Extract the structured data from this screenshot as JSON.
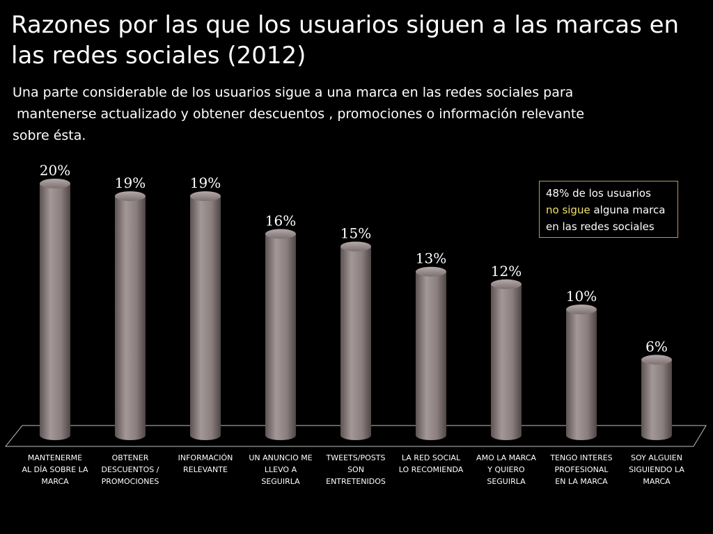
{
  "slide": {
    "title_lines": [
      "Razones por las que los usuarios siguen a las marcas en",
      "las redes sociales (2012)"
    ],
    "subtitle_lines": [
      "Una parte considerable de los usuarios sigue a una marca en las redes sociales para",
      " mantenerse actualizado y obtener descuentos , promociones o información relevante",
      "sobre ésta."
    ]
  },
  "note": {
    "line1": "48% de los usuarios",
    "highlight": "no sigue",
    "line2_rest": " alguna marca",
    "line3": "en las redes sociales",
    "highlight_color": "#f2e06a",
    "border_color": "#b89a62"
  },
  "chart_data": {
    "type": "bar",
    "title": "",
    "xlabel": "",
    "ylabel": "",
    "ylim": [
      0,
      20
    ],
    "grid": false,
    "bar_style": "3d-cylinder",
    "bar_color": "#8a7e7e",
    "categories": [
      [
        "MANTENERME",
        "AL DÍA SOBRE LA",
        "MARCA"
      ],
      [
        "OBTENER",
        "DESCUENTOS /",
        "PROMOCIONES"
      ],
      [
        "INFORMACIÓN",
        "RELEVANTE"
      ],
      [
        "UN ANUNCIO ME",
        "LLEVO A",
        "SEGUIRLA"
      ],
      [
        "TWEETS/POSTS",
        "SON",
        "ENTRETENIDOS"
      ],
      [
        "LA RED SOCIAL",
        "LO RECOMIENDA"
      ],
      [
        "AMO LA MARCA",
        "Y QUIERO",
        "SEGUIRLA"
      ],
      [
        "TENGO INTERES",
        "PROFESIONAL",
        "EN LA MARCA"
      ],
      [
        "SOY ALGUIEN",
        "SIGUIENDO LA",
        "MARCA"
      ]
    ],
    "values": [
      20,
      19,
      19,
      16,
      15,
      13,
      12,
      10,
      6
    ],
    "data_labels": [
      "20%",
      "19%",
      "19%",
      "16%",
      "15%",
      "13%",
      "12%",
      "10%",
      "6%"
    ]
  }
}
